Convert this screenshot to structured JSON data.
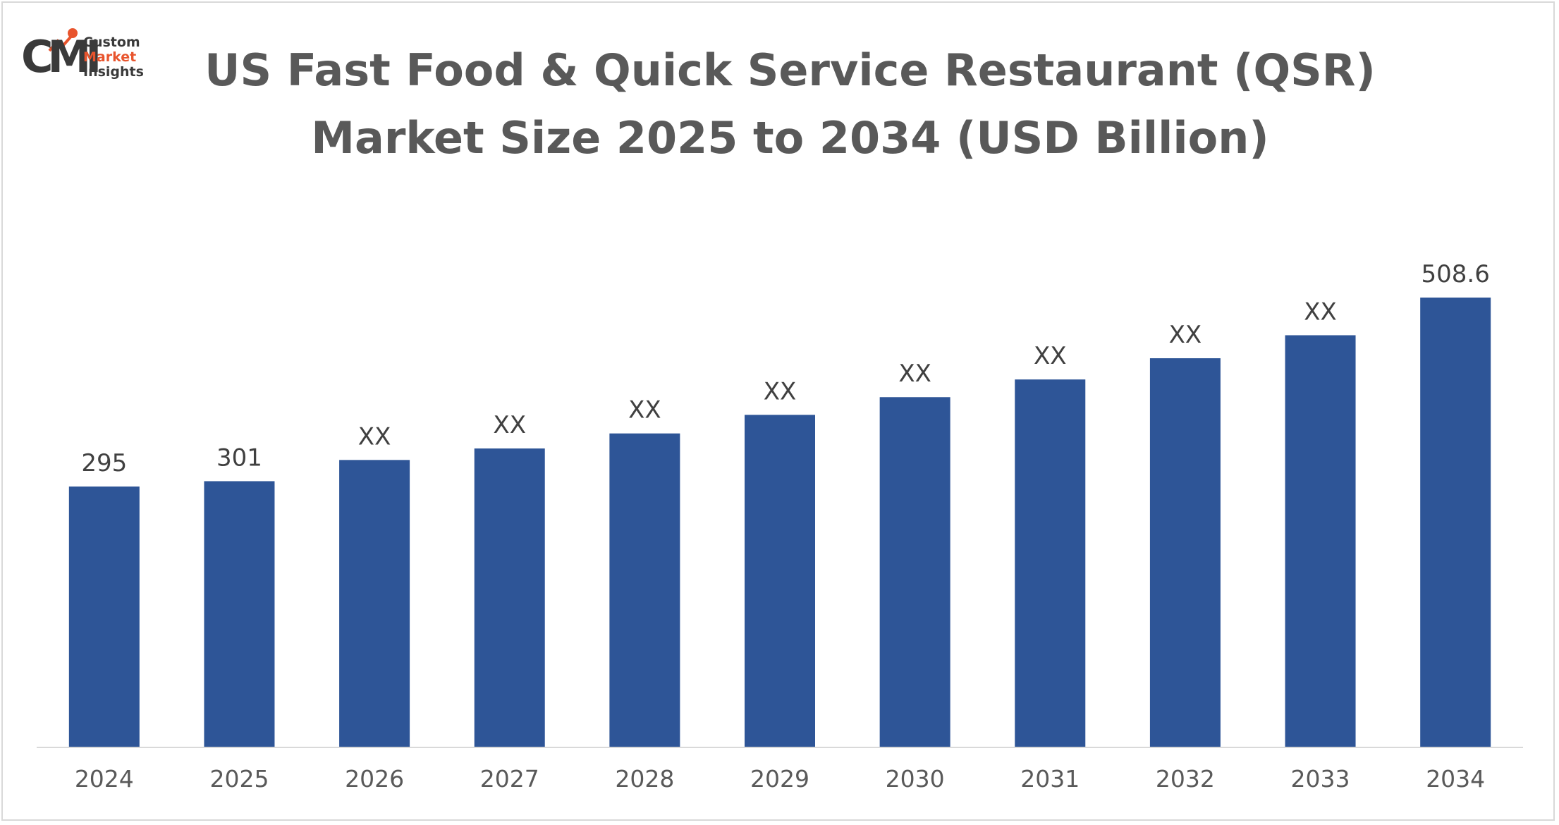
{
  "logo": {
    "mark": "CMI",
    "line1": "Custom",
    "line2": "Market",
    "line3": "Insights"
  },
  "chart_data": {
    "type": "bar",
    "title": "US Fast Food & Quick Service Restaurant (QSR)",
    "subtitle": "Market Size 2025 to 2034 (USD Billion)",
    "xlabel": "",
    "ylabel": "",
    "categories": [
      "2024",
      "2025",
      "2026",
      "2027",
      "2028",
      "2029",
      "2030",
      "2031",
      "2032",
      "2033",
      "2034"
    ],
    "values": [
      295,
      301,
      325,
      338,
      355,
      376,
      396,
      416,
      440,
      466,
      508.6
    ],
    "data_labels": [
      "295",
      "301",
      "XX",
      "XX",
      "XX",
      "XX",
      "XX",
      "XX",
      "XX",
      "XX",
      "508.6"
    ],
    "ylim": [
      0,
      508.6
    ],
    "grid": false,
    "legend": "none",
    "bar_color": "#2e5597"
  }
}
